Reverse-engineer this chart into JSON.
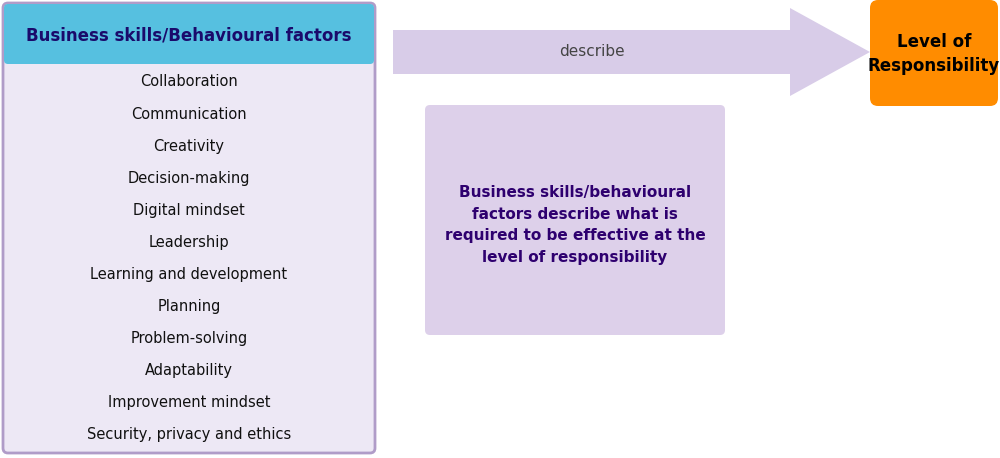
{
  "title": "Business skills/Behavioural factors",
  "title_color": "#1a0a6b",
  "title_bg": "#56c0e0",
  "box_bg": "#ede8f5",
  "box_border": "#b09cc8",
  "items": [
    "Collaboration",
    "Communication",
    "Creativity",
    "Decision-making",
    "Digital mindset",
    "Leadership",
    "Learning and development",
    "Planning",
    "Problem-solving",
    "Adaptability",
    "Improvement mindset",
    "Security, privacy and ethics"
  ],
  "arrow_color": "#d8cce8",
  "arrow_label": "describe",
  "arrow_label_color": "#444444",
  "right_box_bg": "#ff8c00",
  "right_box_text": "Level of\nResponsibility",
  "right_box_text_color": "#000000",
  "center_box_bg": "#ddd0ea",
  "center_box_border": "#c0a8d8",
  "center_text": "Business skills/behavioural\nfactors describe what is\nrequired to be effective at the\nlevel of responsibility",
  "center_text_color": "#2e006f",
  "bg_color": "#ffffff"
}
